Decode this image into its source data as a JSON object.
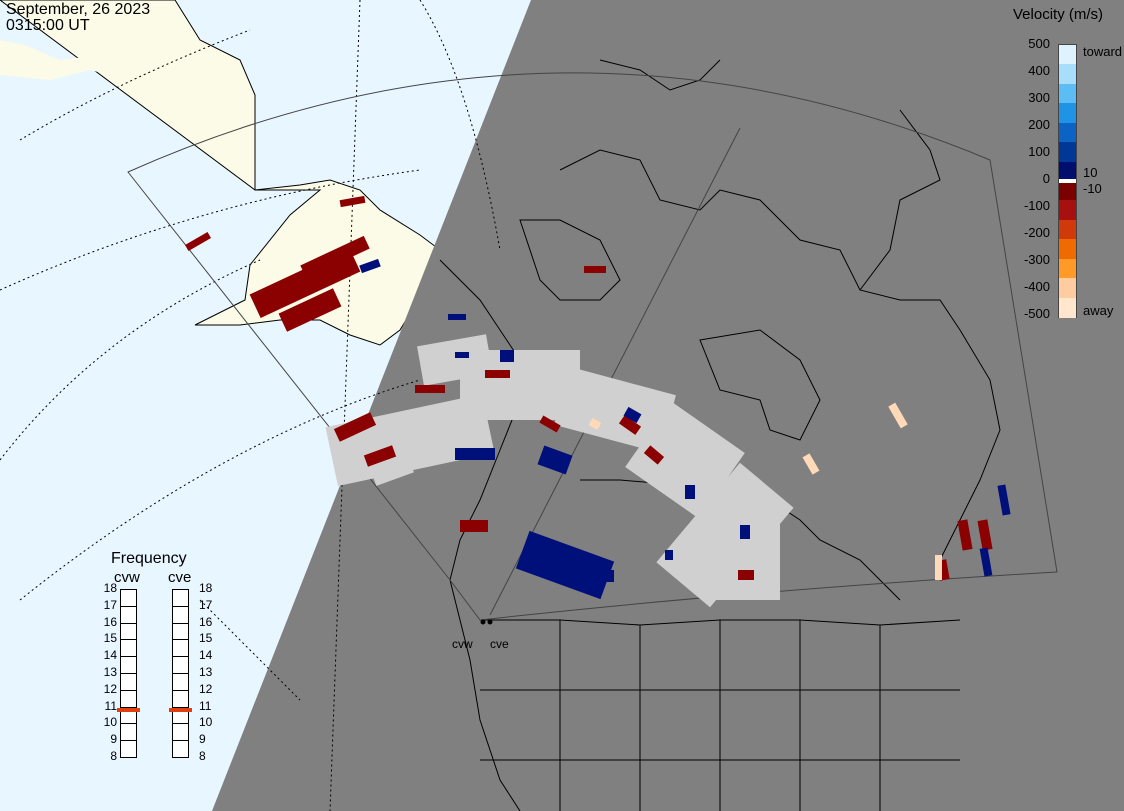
{
  "header": {
    "date": "September, 26 2023",
    "time": "0315:00 UT"
  },
  "colors": {
    "ocean": "#e8f6ff",
    "land_day": "#fbfbe8",
    "night": "#808080",
    "ground_scatter": "#d0d0d0",
    "freq_marker": "#e04010"
  },
  "velocity_legend": {
    "title": "Velocity (m/s)",
    "ticks": [
      "500",
      "400",
      "300",
      "200",
      "100",
      "0",
      "-100",
      "-200",
      "-300",
      "-400",
      "-500"
    ],
    "toward_label": "toward",
    "away_label": "away",
    "near_zero_pos": "10",
    "near_zero_neg": "-10",
    "scale": [
      {
        "color": "#dff3ff"
      },
      {
        "color": "#a8ddfb"
      },
      {
        "color": "#5cbdf5"
      },
      {
        "color": "#1f93e6"
      },
      {
        "color": "#0b63c4"
      },
      {
        "color": "#003898"
      },
      {
        "color": "#000e6e"
      },
      {
        "color": "#7a0000"
      },
      {
        "color": "#a81010"
      },
      {
        "color": "#d03a0a"
      },
      {
        "color": "#ef6a00"
      },
      {
        "color": "#ff9a28"
      },
      {
        "color": "#ffcca0"
      },
      {
        "color": "#ffe6cc"
      }
    ]
  },
  "frequency_panel": {
    "title": "Frequency",
    "radars": [
      {
        "code": "cvw",
        "selected_mhz": 10.8
      },
      {
        "code": "cve",
        "selected_mhz": 10.8
      }
    ],
    "scale_labels": [
      "18",
      "17",
      "16",
      "15",
      "14",
      "13",
      "12",
      "11",
      "10",
      "9",
      "8"
    ]
  },
  "map": {
    "radar_labels": [
      "cvw",
      "cve"
    ]
  }
}
